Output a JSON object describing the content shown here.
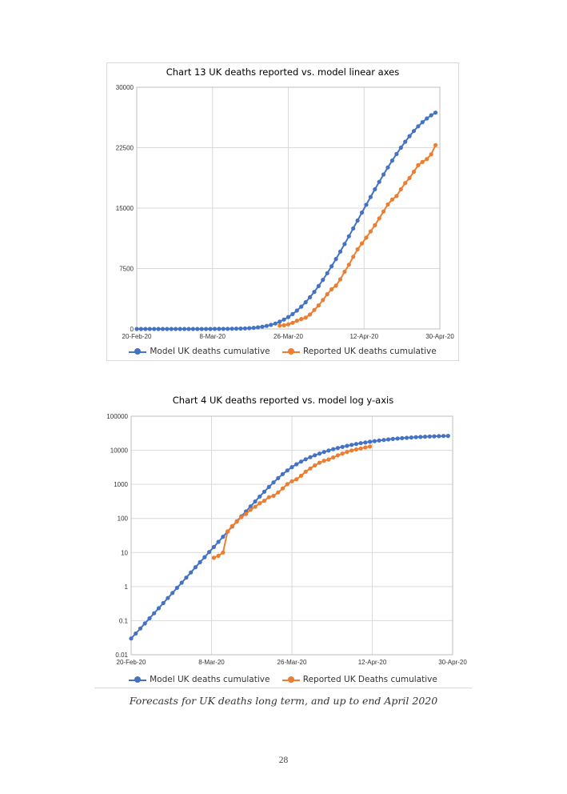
{
  "charts": [
    {
      "type": "line",
      "title": "Chart 13 UK deaths reported vs. model linear axes",
      "y_scale": "linear",
      "x_tick_labels": [
        "20-Feb-20",
        "8-Mar-20",
        "26-Mar-20",
        "12-Apr-20",
        "30-Apr-20"
      ],
      "y_tick_labels": [
        "0",
        "7500",
        "15000",
        "22500",
        "30000"
      ],
      "ylim": [
        0,
        30000
      ],
      "xlim": [
        "2020-02-20",
        "2020-04-30"
      ],
      "grid": true,
      "legend_position": "bottom",
      "series": [
        {
          "name": "Model UK deaths cumulative",
          "color": "#4472C4",
          "markers": true,
          "x": [
            "2020-02-20",
            "2020-02-21",
            "2020-02-22",
            "2020-02-23",
            "2020-02-24",
            "2020-02-25",
            "2020-02-26",
            "2020-02-27",
            "2020-02-28",
            "2020-02-29",
            "2020-03-01",
            "2020-03-02",
            "2020-03-03",
            "2020-03-04",
            "2020-03-05",
            "2020-03-06",
            "2020-03-07",
            "2020-03-08",
            "2020-03-09",
            "2020-03-10",
            "2020-03-11",
            "2020-03-12",
            "2020-03-13",
            "2020-03-14",
            "2020-03-15",
            "2020-03-16",
            "2020-03-17",
            "2020-03-18",
            "2020-03-19",
            "2020-03-20",
            "2020-03-21",
            "2020-03-22",
            "2020-03-23",
            "2020-03-24",
            "2020-03-25",
            "2020-03-26",
            "2020-03-27",
            "2020-03-28",
            "2020-03-29",
            "2020-03-30",
            "2020-03-31",
            "2020-04-01",
            "2020-04-02",
            "2020-04-03",
            "2020-04-04",
            "2020-04-05",
            "2020-04-06",
            "2020-04-07",
            "2020-04-08",
            "2020-04-09",
            "2020-04-10",
            "2020-04-11",
            "2020-04-12",
            "2020-04-13",
            "2020-04-14",
            "2020-04-15",
            "2020-04-16",
            "2020-04-17",
            "2020-04-18",
            "2020-04-19",
            "2020-04-20",
            "2020-04-21",
            "2020-04-22",
            "2020-04-23",
            "2020-04-24",
            "2020-04-25",
            "2020-04-26",
            "2020-04-27",
            "2020-04-28",
            "2020-04-29"
          ],
          "y": [
            0,
            0,
            0,
            0,
            0,
            0,
            0,
            0,
            0,
            0,
            0,
            0,
            0,
            0,
            0,
            0,
            0,
            0,
            5,
            8,
            12,
            17,
            25,
            35,
            50,
            70,
            100,
            140,
            200,
            280,
            380,
            510,
            680,
            900,
            1170,
            1480,
            1850,
            2280,
            2770,
            3320,
            3930,
            4600,
            5320,
            6100,
            6920,
            7780,
            8680,
            9600,
            10540,
            11500,
            12480,
            13460,
            14440,
            15420,
            16380,
            17330,
            18260,
            19170,
            20050,
            20900,
            21720,
            22500,
            23240,
            23930,
            24570,
            25150,
            25670,
            26130,
            26520,
            26850
          ]
        },
        {
          "name": "Reported UK deaths cumulative",
          "color": "#ED7D31",
          "markers": true,
          "x": [
            "2020-03-24",
            "2020-03-25",
            "2020-03-26",
            "2020-03-27",
            "2020-03-28",
            "2020-03-29",
            "2020-03-30",
            "2020-03-31",
            "2020-04-01",
            "2020-04-02",
            "2020-04-03",
            "2020-04-04",
            "2020-04-05",
            "2020-04-06",
            "2020-04-07",
            "2020-04-08",
            "2020-04-09",
            "2020-04-10",
            "2020-04-11",
            "2020-04-12",
            "2020-04-13",
            "2020-04-14",
            "2020-04-15",
            "2020-04-16",
            "2020-04-17",
            "2020-04-18",
            "2020-04-19",
            "2020-04-20",
            "2020-04-21",
            "2020-04-22",
            "2020-04-23",
            "2020-04-24",
            "2020-04-25",
            "2020-04-26",
            "2020-04-27",
            "2020-04-28",
            "2020-04-29"
          ],
          "y": [
            420,
            460,
            580,
            760,
            1020,
            1230,
            1410,
            1790,
            2350,
            2920,
            3600,
            4310,
            4930,
            5370,
            6160,
            7100,
            7980,
            8960,
            9880,
            10610,
            11330,
            12110,
            12870,
            13730,
            14580,
            15460,
            16060,
            16510,
            17340,
            18110,
            18740,
            19510,
            20320,
            20730,
            21090,
            21680,
            22820
          ]
        }
      ]
    },
    {
      "type": "line",
      "title": "Chart 4 UK deaths reported vs. model log y-axis",
      "y_scale": "log",
      "x_tick_labels": [
        "20-Feb-20",
        "8-Mar-20",
        "26-Mar-20",
        "12-Apr-20",
        "30-Apr-20"
      ],
      "y_tick_labels": [
        "0.01",
        "0.1",
        "1",
        "10",
        "100",
        "1000",
        "10000",
        "100000"
      ],
      "ylim": [
        0.01,
        100000
      ],
      "xlim": [
        "2020-02-20",
        "2020-04-30"
      ],
      "grid": true,
      "legend_position": "bottom",
      "series": [
        {
          "name": "Model UK deaths cumulative",
          "color": "#4472C4",
          "markers": true,
          "x": [
            "2020-02-20",
            "2020-02-21",
            "2020-02-22",
            "2020-02-23",
            "2020-02-24",
            "2020-02-25",
            "2020-02-26",
            "2020-02-27",
            "2020-02-28",
            "2020-02-29",
            "2020-03-01",
            "2020-03-02",
            "2020-03-03",
            "2020-03-04",
            "2020-03-05",
            "2020-03-06",
            "2020-03-07",
            "2020-03-08",
            "2020-03-09",
            "2020-03-10",
            "2020-03-11",
            "2020-03-12",
            "2020-03-13",
            "2020-03-14",
            "2020-03-15",
            "2020-03-16",
            "2020-03-17",
            "2020-03-18",
            "2020-03-19",
            "2020-03-20",
            "2020-03-21",
            "2020-03-22",
            "2020-03-23",
            "2020-03-24",
            "2020-03-25",
            "2020-03-26",
            "2020-03-27",
            "2020-03-28",
            "2020-03-29",
            "2020-03-30",
            "2020-03-31",
            "2020-04-01",
            "2020-04-02",
            "2020-04-03",
            "2020-04-04",
            "2020-04-05",
            "2020-04-06",
            "2020-04-07",
            "2020-04-08",
            "2020-04-09",
            "2020-04-10",
            "2020-04-11",
            "2020-04-12",
            "2020-04-13",
            "2020-04-14",
            "2020-04-15",
            "2020-04-16",
            "2020-04-17",
            "2020-04-18",
            "2020-04-19",
            "2020-04-20",
            "2020-04-21",
            "2020-04-22",
            "2020-04-23",
            "2020-04-24",
            "2020-04-25",
            "2020-04-26",
            "2020-04-27",
            "2020-04-28",
            "2020-04-29"
          ],
          "y": [
            0.03,
            0.042,
            0.059,
            0.083,
            0.117,
            0.165,
            0.232,
            0.327,
            0.46,
            0.65,
            0.92,
            1.3,
            1.83,
            2.6,
            3.7,
            5.2,
            7.3,
            10.3,
            14.5,
            20.5,
            29,
            41,
            58,
            82,
            115,
            160,
            225,
            315,
            440,
            610,
            840,
            1140,
            1520,
            2000,
            2560,
            3200,
            3900,
            4650,
            5440,
            6270,
            7130,
            8020,
            8930,
            9850,
            10780,
            11700,
            12620,
            13530,
            14430,
            15310,
            16170,
            17010,
            17830,
            18620,
            19380,
            20110,
            20810,
            21470,
            22100,
            22690,
            23240,
            23750,
            24220,
            24650,
            25040,
            25390,
            25710,
            25990,
            26240,
            26460
          ]
        },
        {
          "name": "Reported UK Deaths cumulative",
          "color": "#ED7D31",
          "markers": true,
          "x": [
            "2020-03-09",
            "2020-03-10",
            "2020-03-11",
            "2020-03-12",
            "2020-03-13",
            "2020-03-14",
            "2020-03-15",
            "2020-03-16",
            "2020-03-17",
            "2020-03-18",
            "2020-03-19",
            "2020-03-20",
            "2020-03-21",
            "2020-03-22",
            "2020-03-23",
            "2020-03-24",
            "2020-03-25",
            "2020-03-26",
            "2020-03-27",
            "2020-03-28",
            "2020-03-29",
            "2020-03-30",
            "2020-03-31",
            "2020-04-01",
            "2020-04-02",
            "2020-04-03",
            "2020-04-04",
            "2020-04-05",
            "2020-04-06",
            "2020-04-07",
            "2020-04-08",
            "2020-04-09",
            "2020-04-10",
            "2020-04-11",
            "2020-04-12"
          ],
          "y": [
            7,
            8,
            10,
            42,
            60,
            80,
            110,
            135,
            180,
            220,
            280,
            330,
            420,
            460,
            580,
            760,
            1020,
            1230,
            1410,
            1790,
            2350,
            2920,
            3600,
            4310,
            4930,
            5370,
            6160,
            7100,
            7980,
            8960,
            9880,
            10610,
            11330,
            12110,
            12870
          ]
        }
      ]
    }
  ],
  "caption": "Forecasts for UK deaths long term, and up to end April 2020",
  "page_number": "28"
}
